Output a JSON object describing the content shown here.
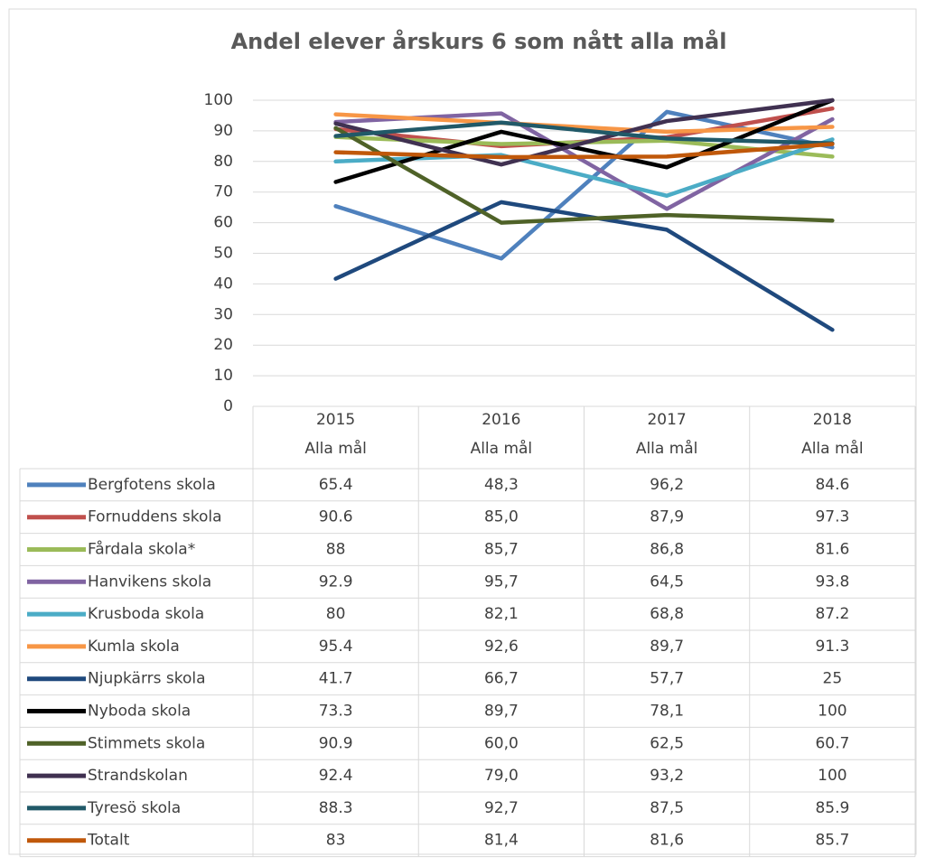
{
  "chart_data": {
    "type": "line",
    "title": "Andel elever årskurs 6 som nått alla mål",
    "categories": [
      "2015",
      "2016",
      "2017",
      "2018"
    ],
    "category_sublabels": [
      "Alla mål",
      "Alla mål",
      "Alla mål",
      "Alla mål"
    ],
    "ylim": [
      0,
      100
    ],
    "yticks": [
      0,
      10,
      20,
      30,
      40,
      50,
      60,
      70,
      80,
      90,
      100
    ],
    "grid": true,
    "series": [
      {
        "name": "Bergfotens skola",
        "color": "#4f81bd",
        "values": [
          65.4,
          48.3,
          96.2,
          84.6
        ],
        "value_labels": [
          "65.4",
          "48,3",
          "96,2",
          "84.6"
        ]
      },
      {
        "name": "Fornuddens skola",
        "color": "#c0504d",
        "values": [
          90.6,
          85.0,
          87.9,
          97.3
        ],
        "value_labels": [
          "90.6",
          "85,0",
          "87,9",
          "97.3"
        ]
      },
      {
        "name": "Fårdala skola*",
        "color": "#9bbb59",
        "values": [
          88,
          85.7,
          86.8,
          81.6
        ],
        "value_labels": [
          "88",
          "85,7",
          "86,8",
          "81.6"
        ]
      },
      {
        "name": "Hanvikens skola",
        "color": "#8064a2",
        "values": [
          92.9,
          95.7,
          64.5,
          93.8
        ],
        "value_labels": [
          "92.9",
          "95,7",
          "64,5",
          "93.8"
        ]
      },
      {
        "name": "Krusboda skola",
        "color": "#4bacc6",
        "values": [
          80,
          82.1,
          68.8,
          87.2
        ],
        "value_labels": [
          "80",
          "82,1",
          "68,8",
          "87.2"
        ]
      },
      {
        "name": "Kumla skola",
        "color": "#f79646",
        "values": [
          95.4,
          92.6,
          89.7,
          91.3
        ],
        "value_labels": [
          "95.4",
          "92,6",
          "89,7",
          "91.3"
        ]
      },
      {
        "name": "Njupkärrs skola",
        "color": "#1f497d",
        "values": [
          41.7,
          66.7,
          57.7,
          25
        ],
        "value_labels": [
          "41.7",
          "66,7",
          "57,7",
          "25"
        ]
      },
      {
        "name": "Nyboda skola",
        "color": "#000000",
        "values": [
          73.3,
          89.7,
          78.1,
          100
        ],
        "value_labels": [
          "73.3",
          "89,7",
          "78,1",
          "100"
        ]
      },
      {
        "name": "Stimmets skola",
        "color": "#4f6228",
        "values": [
          90.9,
          60.0,
          62.5,
          60.7
        ],
        "value_labels": [
          "90.9",
          "60,0",
          "62,5",
          "60.7"
        ]
      },
      {
        "name": "Strandskolan",
        "color": "#403151",
        "values": [
          92.4,
          79.0,
          93.2,
          100
        ],
        "value_labels": [
          "92.4",
          "79,0",
          "93,2",
          "100"
        ]
      },
      {
        "name": "Tyresö skola",
        "color": "#215968",
        "values": [
          88.3,
          92.7,
          87.5,
          85.9
        ],
        "value_labels": [
          "88.3",
          "92,7",
          "87,5",
          "85.9"
        ]
      },
      {
        "name": "Totalt",
        "color": "#c0580a",
        "values": [
          83,
          81.4,
          81.6,
          85.7
        ],
        "value_labels": [
          "83",
          "81,4",
          "81,6",
          "85.7"
        ]
      }
    ]
  }
}
